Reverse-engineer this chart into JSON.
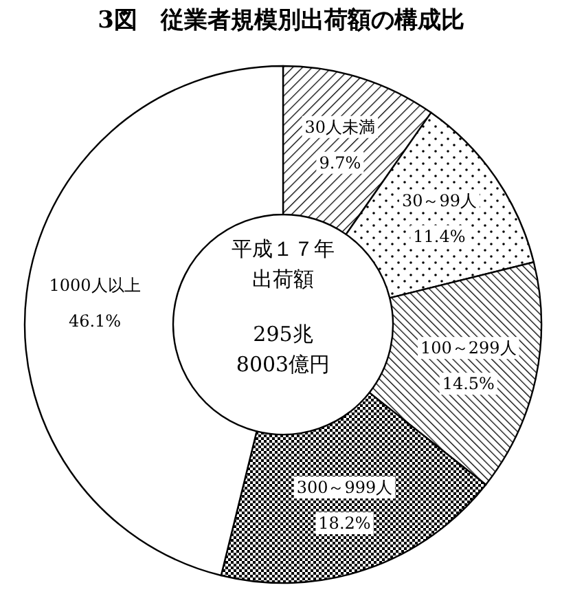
{
  "chart_data": {
    "type": "donut",
    "title": "3図　従業者規模別出荷額の構成比",
    "categories": [
      "30人未満",
      "30～99人",
      "100～299人",
      "300～999人",
      "1000人以上"
    ],
    "values": [
      9.7,
      11.4,
      14.5,
      18.2,
      46.1
    ],
    "value_labels": [
      "9.7%",
      "11.4%",
      "14.5%",
      "18.2%",
      "46.1%"
    ],
    "annotations": [
      "平成１７年",
      "出荷額",
      "295兆",
      "8003億円"
    ]
  }
}
